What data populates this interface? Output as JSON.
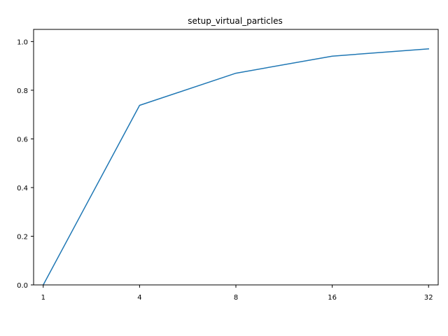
{
  "chart_data": {
    "type": "line",
    "title": "setup_virtual_particles",
    "xlabel": "",
    "ylabel": "",
    "categories": [
      "1",
      "4",
      "8",
      "16",
      "32"
    ],
    "series": [
      {
        "values": [
          0.0,
          0.738,
          0.87,
          0.94,
          0.97
        ]
      }
    ],
    "ylim": [
      0.0,
      1.05
    ],
    "yticks": [
      "0.0",
      "0.2",
      "0.4",
      "0.6",
      "0.8",
      "1.0"
    ],
    "ytick_values": [
      0.0,
      0.2,
      0.4,
      0.6,
      0.8,
      1.0
    ],
    "grid": false,
    "legend": "none",
    "colors": {
      "line": "#1f77b4",
      "axes": "#000000",
      "background": "#ffffff"
    }
  }
}
